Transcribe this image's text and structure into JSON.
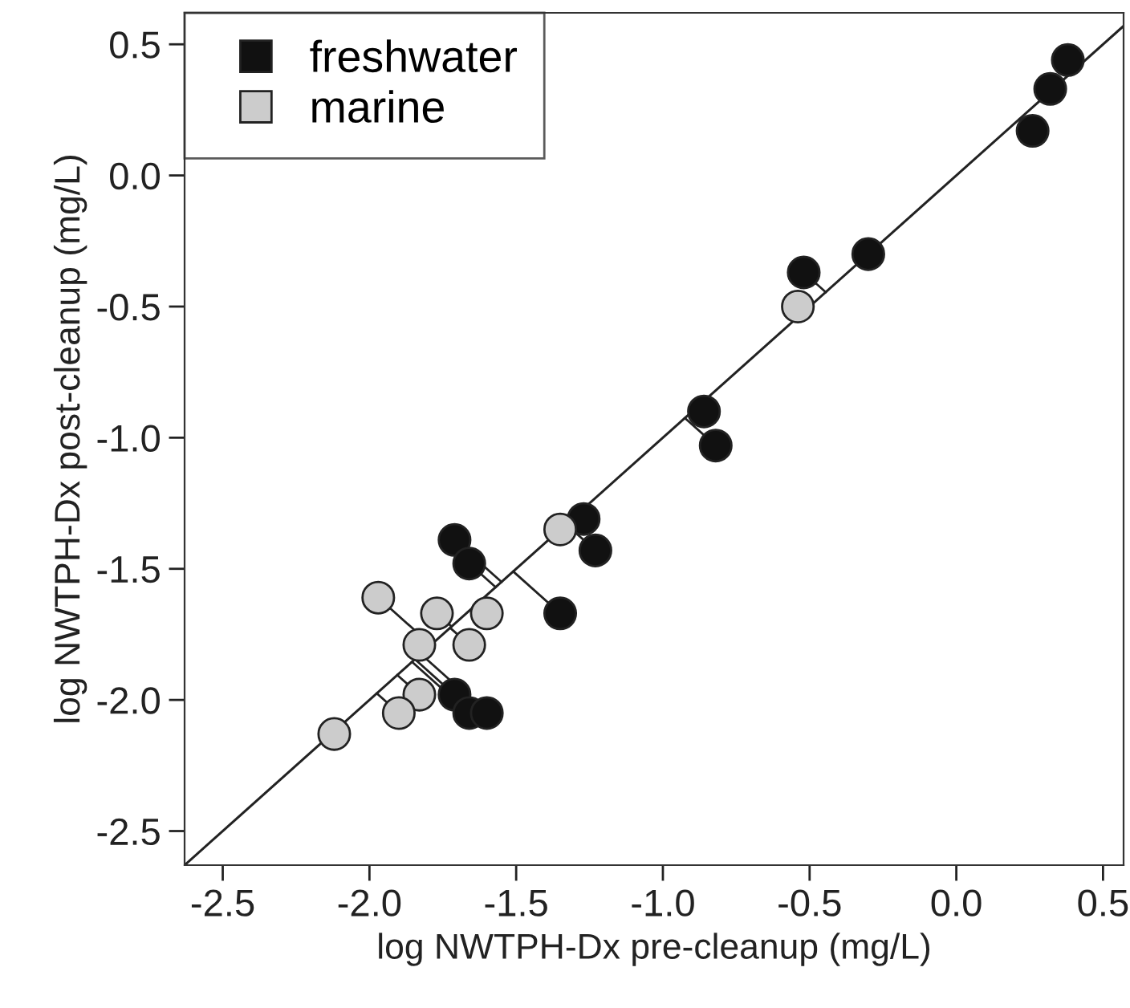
{
  "chart_data": {
    "type": "scatter",
    "xlabel": "log NWTPH-Dx pre-cleanup (mg/L)",
    "ylabel": "log NWTPH-Dx post-cleanup (mg/L)",
    "xlim": [
      -2.63,
      0.57
    ],
    "ylim": [
      -2.63,
      0.62
    ],
    "xticks": [
      {
        "value": -2.5,
        "label": "-2.5"
      },
      {
        "value": -2.0,
        "label": "-2.0"
      },
      {
        "value": -1.5,
        "label": "-1.5"
      },
      {
        "value": -1.0,
        "label": "-1.0"
      },
      {
        "value": -0.5,
        "label": "-0.5"
      },
      {
        "value": 0.0,
        "label": "0.0"
      },
      {
        "value": 0.5,
        "label": "0.5"
      }
    ],
    "yticks": [
      {
        "value": -2.5,
        "label": "-2.5"
      },
      {
        "value": -2.0,
        "label": "-2.0"
      },
      {
        "value": -1.5,
        "label": "-1.5"
      },
      {
        "value": -1.0,
        "label": "-1.0"
      },
      {
        "value": -0.5,
        "label": "-0.5"
      },
      {
        "value": 0.0,
        "label": "0.0"
      },
      {
        "value": 0.5,
        "label": "0.5"
      }
    ],
    "grid": false,
    "legend": "top left",
    "marker": "circle",
    "series": [
      {
        "name": "freshwater",
        "color": "#111111",
        "x": [
          0.38,
          0.32,
          0.26,
          -0.3,
          -0.52,
          -0.86,
          -0.82,
          -1.27,
          -1.23,
          -1.71,
          -1.66,
          -1.35,
          -1.71,
          -1.66,
          -1.6
        ],
        "values": [
          0.44,
          0.33,
          0.17,
          -0.3,
          -0.37,
          -0.9,
          -1.03,
          -1.31,
          -1.43,
          -1.39,
          -1.48,
          -1.67,
          -1.98,
          -2.05,
          -2.05
        ]
      },
      {
        "name": "marine",
        "color": "#cccccc",
        "x": [
          -0.54,
          -1.35,
          -1.97,
          -1.77,
          -1.6,
          -1.83,
          -1.66,
          -1.83,
          -1.9,
          -2.12
        ],
        "values": [
          -0.5,
          -1.35,
          -1.61,
          -1.67,
          -1.67,
          -1.79,
          -1.79,
          -1.98,
          -2.05,
          -2.13
        ]
      },
      {
        "type": "line",
        "color": "#222222",
        "marker": "none",
        "x": [
          -2.63,
          0.57
        ],
        "values": [
          -2.63,
          0.57
        ]
      }
    ]
  }
}
